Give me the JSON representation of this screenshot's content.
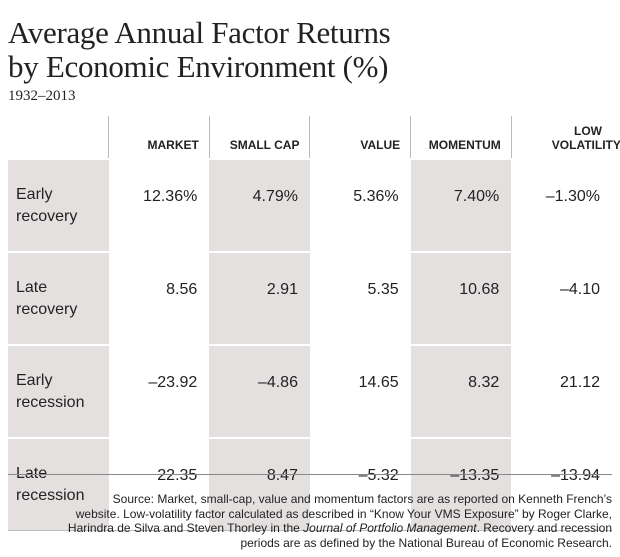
{
  "header": {
    "title": [
      "Average Annual Factor Returns",
      "by Economic Environment (%)"
    ],
    "subtitle": "1932–2013"
  },
  "table": {
    "columns": [
      "MARKET",
      "SMALL CAP",
      "VALUE",
      "MOMENTUM",
      "LOW VOLATILITY"
    ],
    "rows": [
      {
        "label": "Early recovery",
        "cells": [
          "12.36%",
          "4.79%",
          "5.36%",
          "7.40%",
          "–1.30%"
        ]
      },
      {
        "label": "Late recovery",
        "cells": [
          "8.56",
          "2.91",
          "5.35",
          "10.68",
          "–4.10"
        ]
      },
      {
        "label": "Early recession",
        "cells": [
          "–23.92",
          "–4.86",
          "14.65",
          "8.32",
          "21.12"
        ]
      },
      {
        "label": "Late recession",
        "cells": [
          "22.35",
          "8.47",
          "–5.32",
          "–13.35",
          "–13.94"
        ]
      }
    ]
  },
  "footer": {
    "source": [
      [
        "Source: Market, small-cap, value and momentum factors are as reported on Kenneth French’s"
      ],
      [
        "website. Low-volatility factor calculated as described in “Know Your VMS Exposure” by Roger Clarke,"
      ],
      [
        "Harindra de Silva and Steven Thorley in the ",
        "Journal of Portfolio Management",
        ". Recovery and recession"
      ],
      [
        "periods are as defined by the National Bureau of Economic Research."
      ]
    ]
  }
}
